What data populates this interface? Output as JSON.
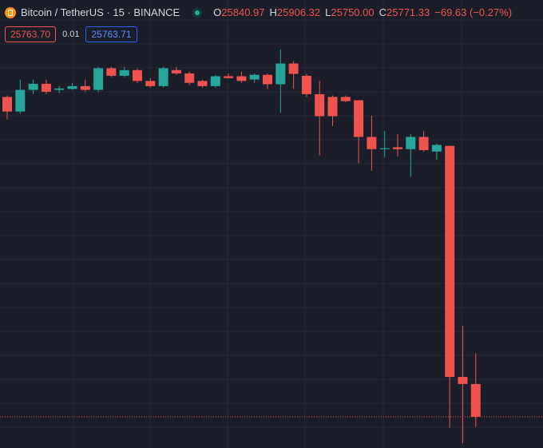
{
  "header": {
    "symbol": "Bitcoin / TetherUS · 15 · BINANCE",
    "ohlc": [
      {
        "key": "O",
        "value": 25840.97
      },
      {
        "key": "H",
        "value": 25906.32
      },
      {
        "key": "L",
        "value": {
          "value": 25750,
          "label": "25750.00"
        }
      },
      {
        "key": "C",
        "value": 25771.33
      }
    ],
    "change": "−69.63 (−0.27%)",
    "sell": "25763.70",
    "spread": "0.01",
    "buy": "25763.71"
  },
  "chart_data": {
    "type": "candlestick",
    "up_color": "#26a69a",
    "down_color": "#ef5350",
    "ylim": [
      25705,
      26657
    ],
    "open": [
      26451,
      26420,
      26466,
      26479,
      26466,
      26468,
      26474,
      26466,
      26512,
      26496,
      26508,
      26485,
      26474,
      26508,
      26501,
      26485,
      26474,
      26495,
      26495,
      26488,
      26498,
      26478,
      26522,
      26496,
      26457,
      26451,
      26451,
      26444,
      26366,
      26340,
      26344,
      26340,
      26366,
      26335,
      26347,
      25856,
      25840.97
    ],
    "high": [
      26454,
      26488,
      26488,
      26488,
      26474,
      26481,
      26488,
      26515,
      26515,
      26515,
      26512,
      26491,
      26515,
      26515,
      26505,
      26488,
      26498,
      26501,
      26505,
      26501,
      26501,
      26552,
      26527,
      26500,
      26485,
      26454,
      26454,
      26444,
      26411,
      26378,
      26372,
      26372,
      26378,
      26352,
      26347,
      25965,
      25906.32
    ],
    "low": [
      26403,
      26415,
      26457,
      26457,
      26459,
      26466,
      26462,
      26462,
      26493,
      26493,
      26481,
      26471,
      26471,
      26498,
      26476,
      26471,
      26471,
      26490,
      26481,
      26481,
      26468,
      26417,
      26468,
      26451,
      26327,
      26389,
      26440,
      26310,
      26294,
      26322,
      26325,
      26281,
      26335,
      26318,
      25748,
      25715,
      25750
    ],
    "close": [
      26420,
      26466,
      26479,
      26462,
      26469,
      26474,
      26466,
      26512,
      26496,
      26508,
      26485,
      26474,
      26512,
      26501,
      26481,
      26474,
      26495,
      26491,
      26485,
      26498,
      26478,
      26522,
      26500,
      26457,
      26410,
      26410,
      26442,
      26366,
      26340,
      26342,
      26340,
      26366,
      26338,
      26349,
      25856,
      25841,
      25771.33
    ]
  }
}
